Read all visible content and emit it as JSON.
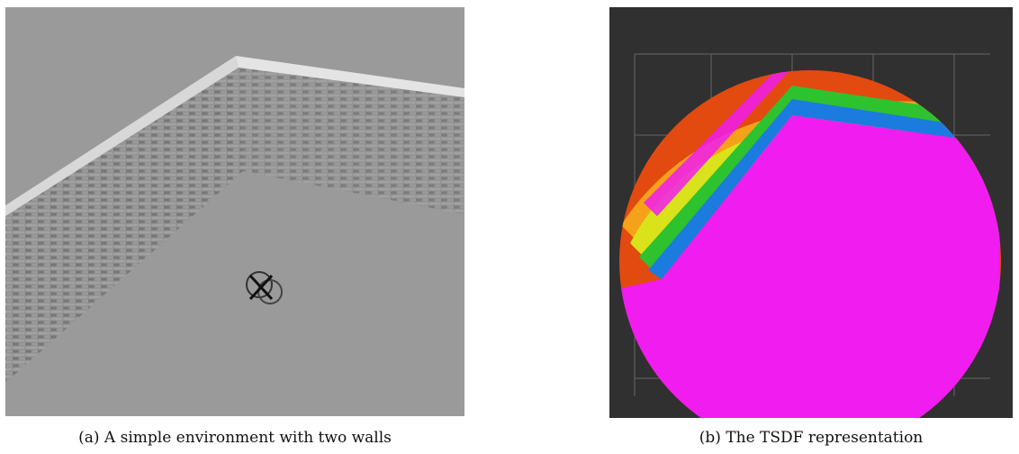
{
  "figure": {
    "subfigures": [
      {
        "caption": "(a) A simple environment with two walls"
      },
      {
        "caption": "(b) The TSDF representation"
      }
    ]
  }
}
